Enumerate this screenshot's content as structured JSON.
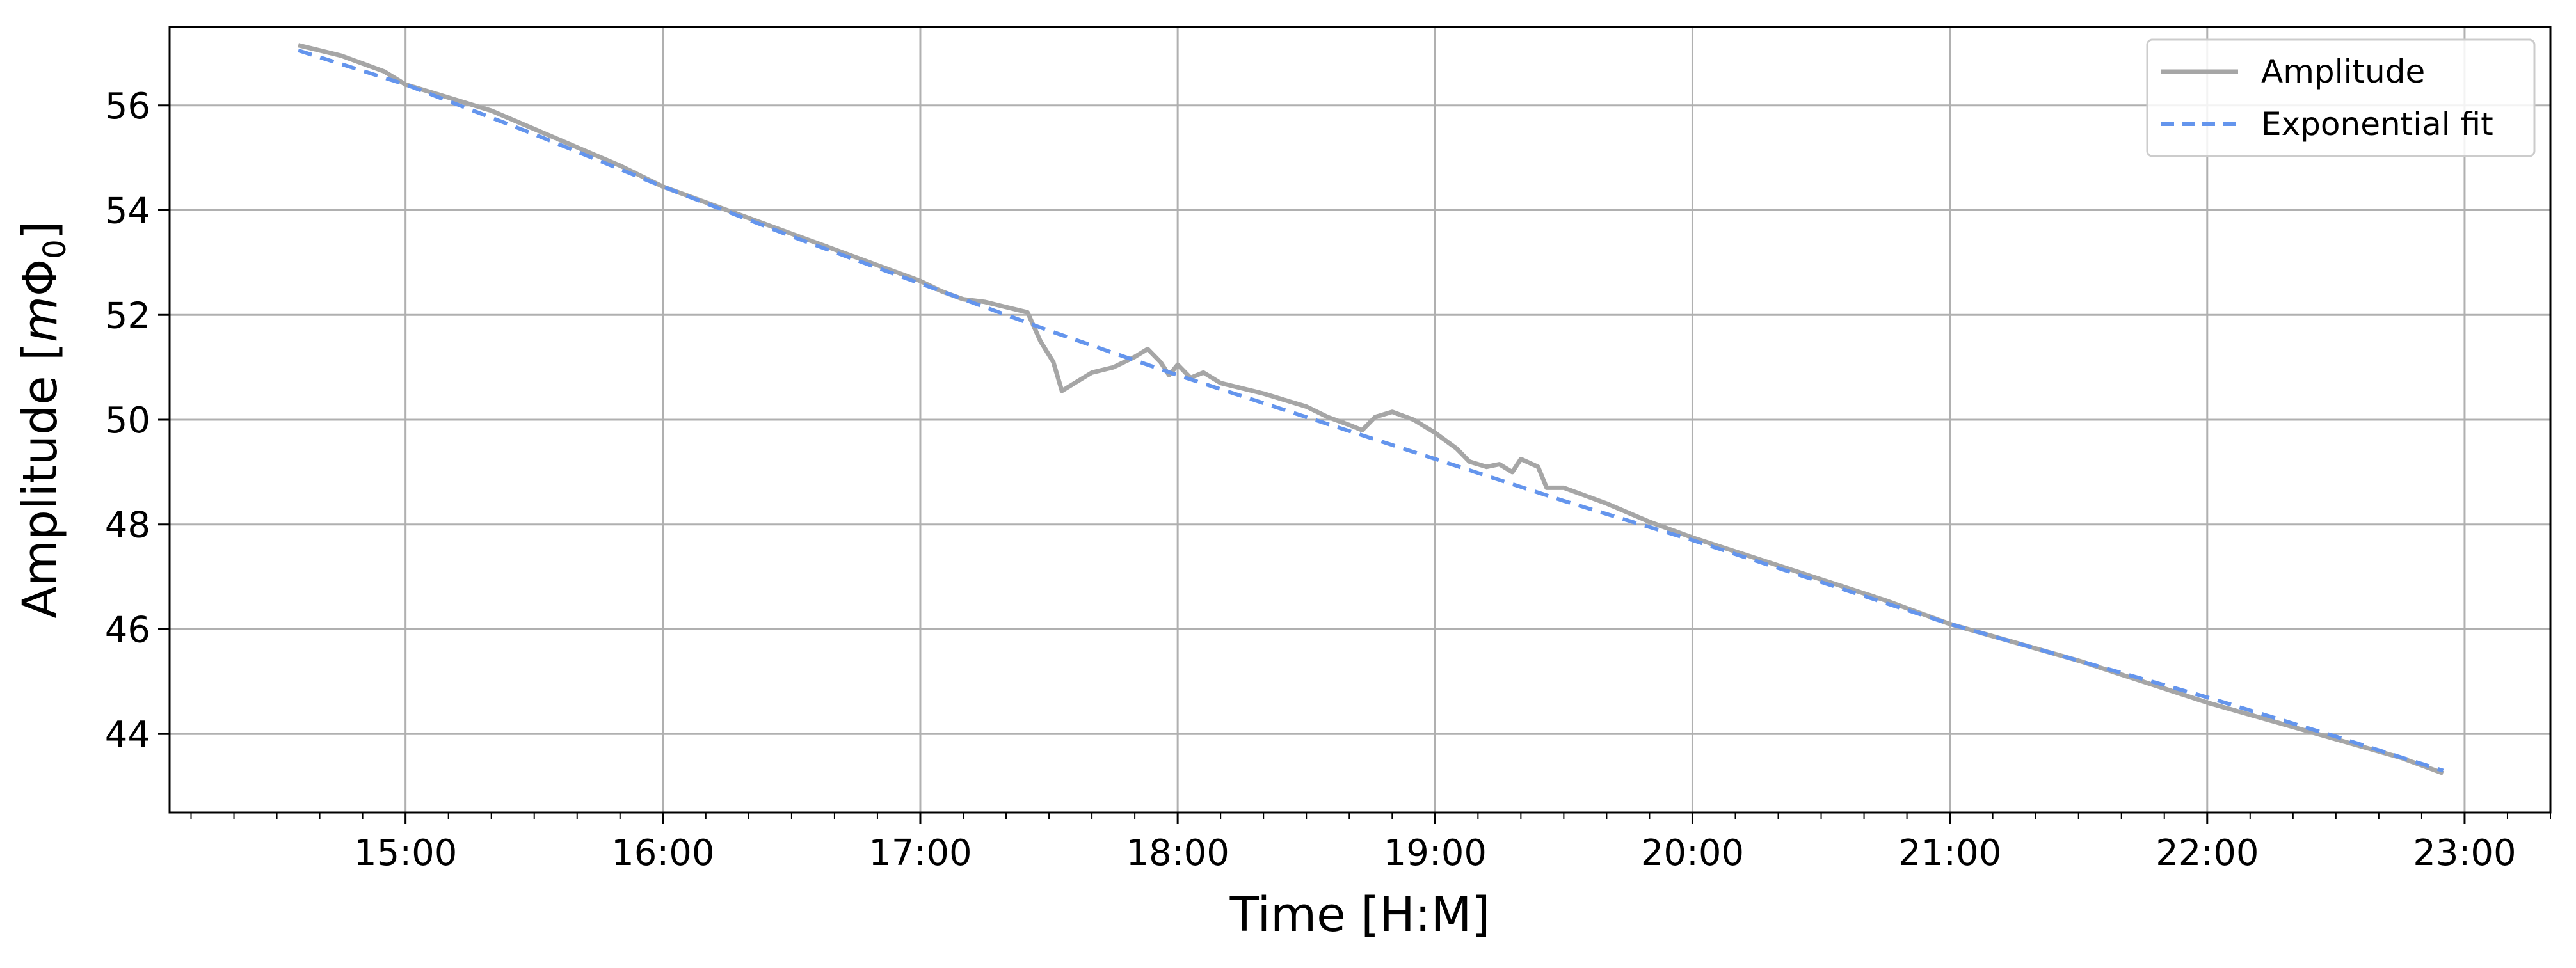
{
  "chart_data": {
    "type": "line",
    "title": "",
    "xlabel": "Time [H:M]",
    "ylabel_main": "Amplitude [",
    "ylabel_math_m": "m",
    "ylabel_math_phi": "Φ",
    "ylabel_sub": "0",
    "ylabel_close": "]",
    "xlim": [
      "14:05",
      "23:20"
    ],
    "ylim": [
      42.5,
      57.5
    ],
    "x_ticks": [
      "15:00",
      "16:00",
      "17:00",
      "18:00",
      "19:00",
      "20:00",
      "21:00",
      "22:00",
      "23:00"
    ],
    "y_ticks": [
      44,
      46,
      48,
      50,
      52,
      54,
      56
    ],
    "grid": true,
    "legend_position": "top-right",
    "colors": {
      "amplitude": "#a6a6a6",
      "fit": "#6495ed",
      "grid": "#b0b0b0"
    },
    "series": [
      {
        "name": "Amplitude",
        "style": "solid",
        "points": [
          [
            "14:35",
            57.15
          ],
          [
            "14:40",
            57.05
          ],
          [
            "14:45",
            56.95
          ],
          [
            "14:50",
            56.8
          ],
          [
            "14:55",
            56.65
          ],
          [
            "15:00",
            56.4
          ],
          [
            "15:10",
            56.15
          ],
          [
            "15:20",
            55.9
          ],
          [
            "15:30",
            55.55
          ],
          [
            "15:40",
            55.2
          ],
          [
            "15:50",
            54.85
          ],
          [
            "16:00",
            54.45
          ],
          [
            "16:10",
            54.15
          ],
          [
            "16:20",
            53.85
          ],
          [
            "16:30",
            53.55
          ],
          [
            "16:40",
            53.25
          ],
          [
            "16:50",
            52.95
          ],
          [
            "17:00",
            52.65
          ],
          [
            "17:05",
            52.45
          ],
          [
            "17:10",
            52.3
          ],
          [
            "17:15",
            52.25
          ],
          [
            "17:20",
            52.15
          ],
          [
            "17:25",
            52.05
          ],
          [
            "17:28",
            51.5
          ],
          [
            "17:31",
            51.1
          ],
          [
            "17:33",
            50.55
          ],
          [
            "17:36",
            50.7
          ],
          [
            "17:40",
            50.9
          ],
          [
            "17:45",
            51.0
          ],
          [
            "17:50",
            51.2
          ],
          [
            "17:53",
            51.35
          ],
          [
            "17:56",
            51.1
          ],
          [
            "17:58",
            50.85
          ],
          [
            "18:00",
            51.05
          ],
          [
            "18:03",
            50.8
          ],
          [
            "18:06",
            50.9
          ],
          [
            "18:10",
            50.7
          ],
          [
            "18:20",
            50.5
          ],
          [
            "18:30",
            50.25
          ],
          [
            "18:35",
            50.05
          ],
          [
            "18:40",
            49.9
          ],
          [
            "18:43",
            49.8
          ],
          [
            "18:46",
            50.05
          ],
          [
            "18:50",
            50.15
          ],
          [
            "18:55",
            50.0
          ],
          [
            "19:00",
            49.75
          ],
          [
            "19:05",
            49.45
          ],
          [
            "19:08",
            49.2
          ],
          [
            "19:12",
            49.1
          ],
          [
            "19:15",
            49.15
          ],
          [
            "19:18",
            49.0
          ],
          [
            "19:20",
            49.25
          ],
          [
            "19:24",
            49.1
          ],
          [
            "19:26",
            48.7
          ],
          [
            "19:30",
            48.7
          ],
          [
            "19:40",
            48.4
          ],
          [
            "19:50",
            48.05
          ],
          [
            "20:00",
            47.75
          ],
          [
            "20:15",
            47.35
          ],
          [
            "20:30",
            46.95
          ],
          [
            "20:45",
            46.55
          ],
          [
            "21:00",
            46.1
          ],
          [
            "21:15",
            45.75
          ],
          [
            "21:30",
            45.4
          ],
          [
            "21:45",
            45.0
          ],
          [
            "22:00",
            44.6
          ],
          [
            "22:15",
            44.25
          ],
          [
            "22:30",
            43.9
          ],
          [
            "22:45",
            43.55
          ],
          [
            "22:55",
            43.25
          ]
        ]
      },
      {
        "name": "Exponential fit",
        "style": "dashed",
        "points": [
          [
            "14:35",
            57.05
          ],
          [
            "15:00",
            56.4
          ],
          [
            "15:30",
            55.45
          ],
          [
            "16:00",
            54.45
          ],
          [
            "16:30",
            53.5
          ],
          [
            "17:00",
            52.6
          ],
          [
            "17:30",
            51.7
          ],
          [
            "18:00",
            50.85
          ],
          [
            "18:30",
            50.05
          ],
          [
            "19:00",
            49.25
          ],
          [
            "19:30",
            48.45
          ],
          [
            "20:00",
            47.7
          ],
          [
            "20:30",
            46.9
          ],
          [
            "21:00",
            46.1
          ],
          [
            "21:30",
            45.4
          ],
          [
            "22:00",
            44.7
          ],
          [
            "22:30",
            43.95
          ],
          [
            "22:55",
            43.3
          ]
        ]
      }
    ]
  }
}
